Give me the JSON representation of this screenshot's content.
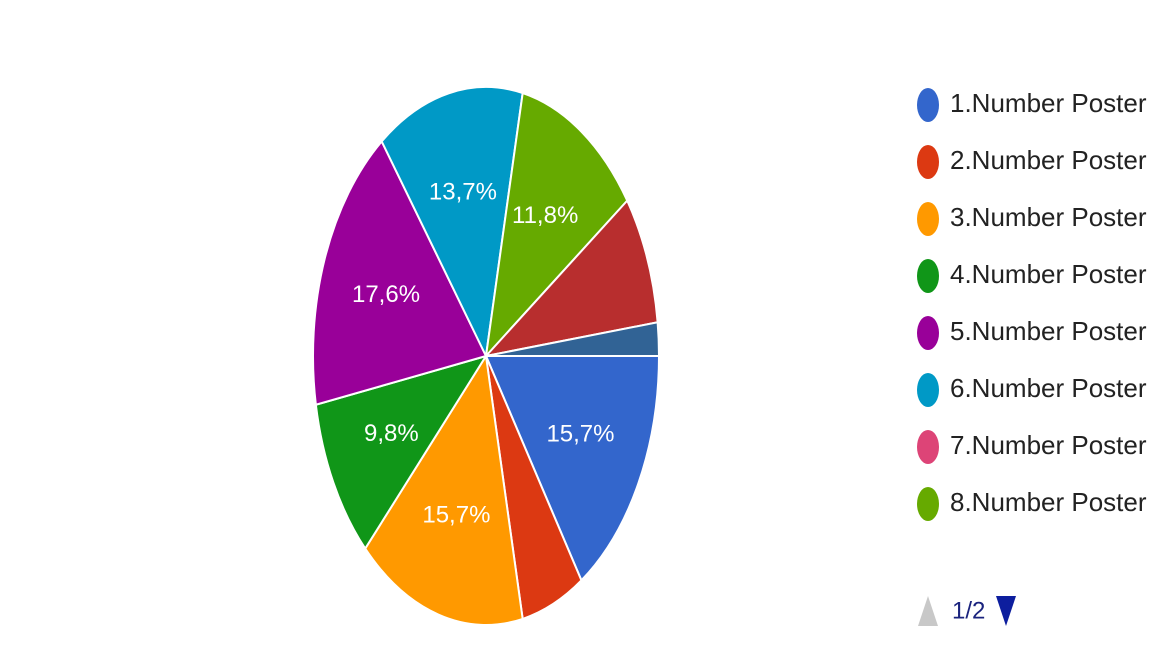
{
  "chart_data": {
    "type": "pie",
    "categories": [
      "1.Number Poster",
      "2.Number Poster",
      "3.Number Poster",
      "4.Number Poster",
      "5.Number Poster",
      "6.Number Poster",
      "7.Number Poster",
      "8.Number Poster",
      null,
      null
    ],
    "values": [
      15.7,
      5.9,
      15.7,
      9.8,
      17.6,
      13.7,
      0,
      11.8,
      7.8,
      2.0
    ],
    "value_labels": [
      "15,7%",
      null,
      "15,7%",
      "9,8%",
      "17,6%",
      "13,7%",
      null,
      "11,8%",
      null,
      null
    ],
    "colors": [
      "#3366cc",
      "#dc3912",
      "#ff9900",
      "#109618",
      "#990099",
      "#0099c6",
      "#dd4477",
      "#66aa00",
      "#b82e2e",
      "#316395"
    ],
    "legend_page": "1/2"
  }
}
